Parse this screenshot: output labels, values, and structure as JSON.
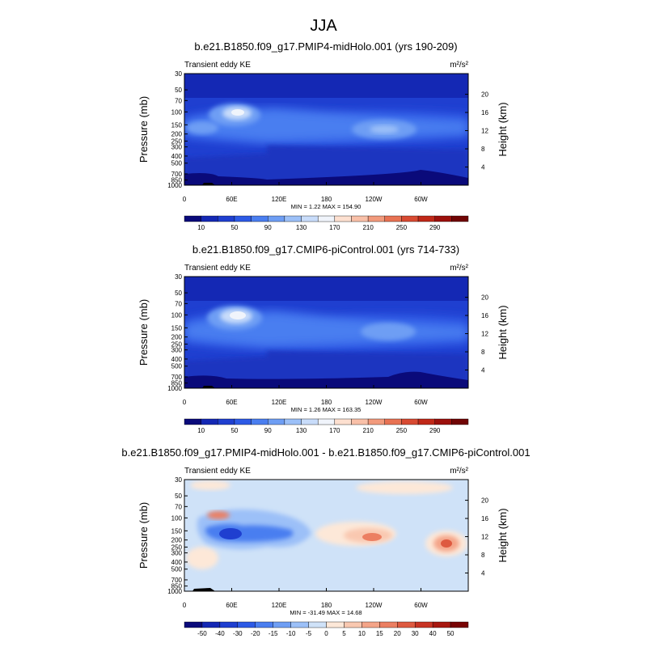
{
  "figure_title": "JJA",
  "chart_data": [
    {
      "type": "heatmap",
      "title": "b.e21.B1850.f09_g17.PMIP4-midHolo.001 (yrs 190-209)",
      "left_label": "Transient eddy KE",
      "units": "m²/s²",
      "stats": "MIN =   1.22  MAX = 154.90",
      "ylabel": "Pressure (mb)",
      "ylabel_right": "Height (km)",
      "xticks": [
        "0",
        "60E",
        "120E",
        "180",
        "120W",
        "60W"
      ],
      "yticks": [
        "30",
        "50",
        "70",
        "100",
        "150",
        "200",
        "250",
        "300",
        "400",
        "500",
        "700",
        "850",
        "1000"
      ],
      "yticks_right": [
        "20",
        "16",
        "12",
        "8",
        "4"
      ],
      "colorbar": {
        "labels": [
          "10",
          "50",
          "90",
          "130",
          "170",
          "210",
          "250",
          "290"
        ],
        "colors": [
          "#0a0a7a",
          "#1428b4",
          "#1f3fd0",
          "#2d5ae6",
          "#4a7ef0",
          "#6e9ef4",
          "#9cc0f8",
          "#c8dcfa",
          "#f0f4fb",
          "#fde0d0",
          "#f9c0a8",
          "#f29a7c",
          "#e87253",
          "#d84a32",
          "#c02818",
          "#9c100c",
          "#700404"
        ]
      },
      "xlim": [
        0,
        360
      ],
      "ylim": [
        1000,
        30
      ],
      "features": [
        {
          "type": "jet",
          "lon": 60,
          "p": 100,
          "value": 155
        },
        {
          "type": "storm-track",
          "lon": 250,
          "p": 170,
          "value": 105
        }
      ]
    },
    {
      "type": "heatmap",
      "title": "b.e21.B1850.f09_g17.CMIP6-piControl.001 (yrs 714-733)",
      "left_label": "Transient eddy KE",
      "units": "m²/s²",
      "stats": "MIN =   1.26  MAX = 163.35",
      "ylabel": "Pressure (mb)",
      "ylabel_right": "Height (km)",
      "xticks": [
        "0",
        "60E",
        "120E",
        "180",
        "120W",
        "60W"
      ],
      "yticks": [
        "30",
        "50",
        "70",
        "100",
        "150",
        "200",
        "250",
        "300",
        "400",
        "500",
        "700",
        "850",
        "1000"
      ],
      "yticks_right": [
        "20",
        "16",
        "12",
        "8",
        "4"
      ],
      "colorbar": {
        "labels": [
          "10",
          "50",
          "90",
          "130",
          "170",
          "210",
          "250",
          "290"
        ],
        "colors": [
          "#0a0a7a",
          "#1428b4",
          "#1f3fd0",
          "#2d5ae6",
          "#4a7ef0",
          "#6e9ef4",
          "#9cc0f8",
          "#c8dcfa",
          "#f0f4fb",
          "#fde0d0",
          "#f9c0a8",
          "#f29a7c",
          "#e87253",
          "#d84a32",
          "#c02818",
          "#9c100c",
          "#700404"
        ]
      },
      "xlim": [
        0,
        360
      ],
      "ylim": [
        1000,
        30
      ],
      "features": [
        {
          "type": "jet",
          "lon": 60,
          "p": 100,
          "value": 163
        },
        {
          "type": "storm-track",
          "lon": 250,
          "p": 170,
          "value": 95
        }
      ]
    },
    {
      "type": "heatmap",
      "title": "b.e21.B1850.f09_g17.PMIP4-midHolo.001 - b.e21.B1850.f09_g17.CMIP6-piControl.001",
      "left_label": "Transient eddy KE",
      "units": "m²/s²",
      "stats": "MIN = -31.49  MAX =  14.68",
      "ylabel": "Pressure (mb)",
      "ylabel_right": "Height (km)",
      "xticks": [
        "0",
        "60E",
        "120E",
        "180",
        "120W",
        "60W"
      ],
      "yticks": [
        "30",
        "50",
        "70",
        "100",
        "150",
        "200",
        "250",
        "300",
        "400",
        "500",
        "700",
        "850",
        "1000"
      ],
      "yticks_right": [
        "20",
        "16",
        "12",
        "8",
        "4"
      ],
      "colorbar": {
        "labels": [
          "-50",
          "-40",
          "-30",
          "-20",
          "-15",
          "-10",
          "-5",
          "0",
          "5",
          "10",
          "15",
          "20",
          "30",
          "40",
          "50"
        ],
        "colors": [
          "#0a0a7a",
          "#1428b4",
          "#1f3fd0",
          "#2d5ae6",
          "#4a7ef0",
          "#6e9ef4",
          "#9cc0f8",
          "#cfe2f8",
          "#fde8d8",
          "#f9c8b0",
          "#f4a488",
          "#ec7f62",
          "#de5a40",
          "#c83424",
          "#a81810",
          "#780404"
        ]
      },
      "xlim": [
        0,
        360
      ],
      "ylim": [
        1000,
        30
      ],
      "features": [
        {
          "type": "negative-anomaly",
          "lon": 55,
          "p": 170,
          "value": -31
        },
        {
          "type": "positive-anomaly",
          "lon": 235,
          "p": 180,
          "value": 10
        },
        {
          "type": "positive-anomaly",
          "lon": 330,
          "p": 210,
          "value": 14
        }
      ]
    }
  ]
}
